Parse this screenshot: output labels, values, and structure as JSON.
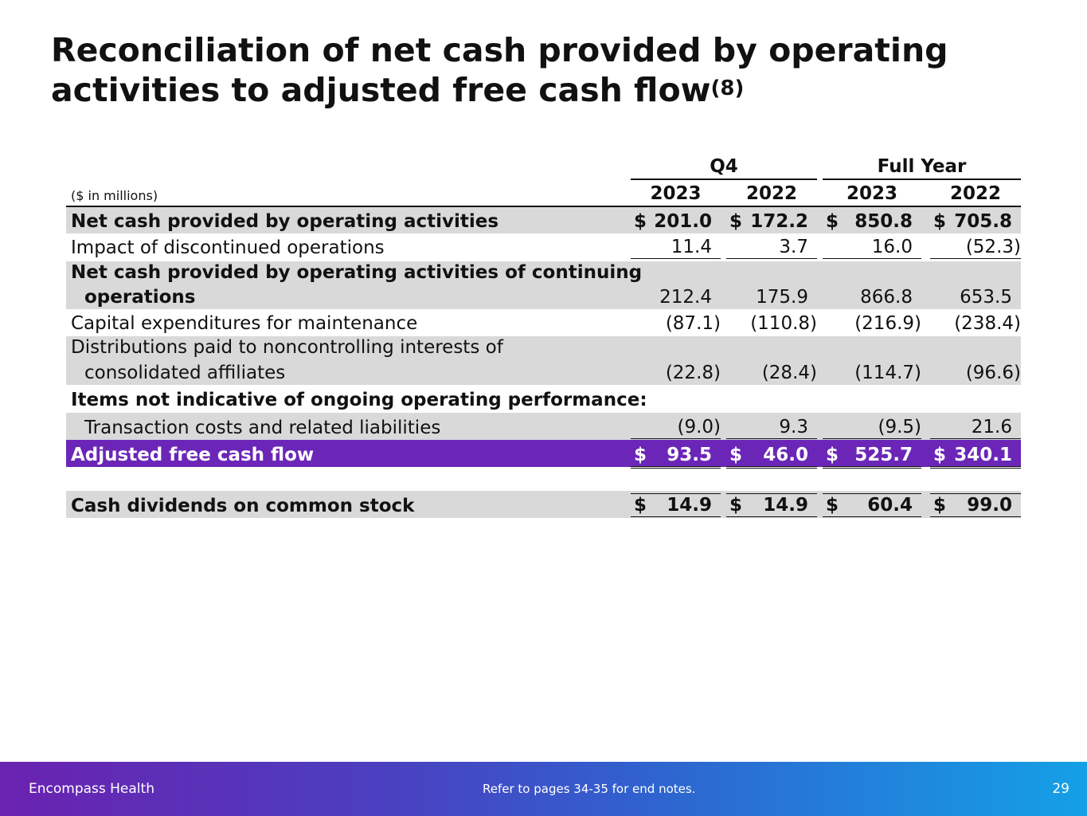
{
  "title": {
    "text": "Reconciliation of net cash provided by operating activities to adjusted free cash flow",
    "superscript": "(8)"
  },
  "table": {
    "unit_label": "($ in millions)",
    "column_groups": [
      "Q4",
      "Full Year"
    ],
    "year_headers": [
      "2023",
      "2022",
      "2023",
      "2022"
    ],
    "currency_symbol": "$",
    "rows": [
      {
        "label_lines": [
          "Net cash provided by operating activities"
        ],
        "values": [
          "201.0",
          "172.2",
          "850.8",
          "705.8"
        ]
      },
      {
        "label_lines": [
          "Impact of discontinued operations"
        ],
        "values": [
          "11.4",
          "3.7",
          "16.0",
          "(52.3)"
        ]
      },
      {
        "label_lines": [
          "Net cash provided by operating activities of continuing",
          "operations"
        ],
        "values": [
          "212.4",
          "175.9",
          "866.8",
          "653.5"
        ]
      },
      {
        "label_lines": [
          "Capital expenditures for maintenance"
        ],
        "values": [
          "(87.1)",
          "(110.8)",
          "(216.9)",
          "(238.4)"
        ]
      },
      {
        "label_lines": [
          "Distributions paid to noncontrolling interests of",
          "consolidated affiliates"
        ],
        "values": [
          "(22.8)",
          "(28.4)",
          "(114.7)",
          "(96.6)"
        ]
      },
      {
        "label_lines": [
          "Items not indicative of ongoing operating performance:"
        ],
        "values": []
      },
      {
        "label_lines": [
          "Transaction costs and related liabilities"
        ],
        "values": [
          "(9.0)",
          "9.3",
          "(9.5)",
          "21.6"
        ]
      },
      {
        "label_lines": [
          "Adjusted free cash flow"
        ],
        "values": [
          "93.5",
          "46.0",
          "525.7",
          "340.1"
        ]
      },
      {
        "label_lines": [
          "Cash dividends on common stock"
        ],
        "values": [
          "14.9",
          "14.9",
          "60.4",
          "99.0"
        ]
      }
    ]
  },
  "footer": {
    "brand": "Encompass Health",
    "note": "Refer to pages 34-35 for end notes.",
    "page_number": "29"
  },
  "colors": {
    "highlight_row": "#6b26b8",
    "shaded_row": "#d9d9d9",
    "footer_gradient_start": "#6a22b0",
    "footer_gradient_end": "#14a0e6"
  }
}
